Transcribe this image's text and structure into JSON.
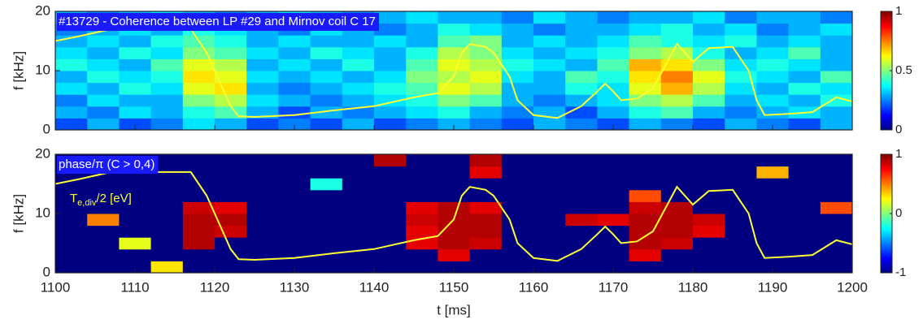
{
  "chart_data": [
    {
      "type": "heatmap",
      "title": "#13729 - Coherence between LP #29 and Mirnov coil C 17",
      "ylabel": "f [kHz]",
      "xlim": [
        1100,
        1200
      ],
      "ylim": [
        0,
        20
      ],
      "yticks": [
        0,
        10,
        20
      ],
      "colormap": "jet",
      "zlim": [
        0,
        1
      ],
      "zticks": [
        0,
        0.5,
        1
      ],
      "xbins": [
        1100,
        1104,
        1108,
        1112,
        1116,
        1120,
        1124,
        1128,
        1132,
        1136,
        1140,
        1144,
        1148,
        1152,
        1156,
        1160,
        1164,
        1168,
        1172,
        1176,
        1180,
        1184,
        1188,
        1192,
        1196,
        1200
      ],
      "ybins": [
        0,
        2,
        4,
        6,
        8,
        10,
        12,
        14,
        16,
        18,
        20
      ],
      "z": [
        [
          0.2,
          0.3,
          0.2,
          0.25,
          0.35,
          0.3,
          0.2,
          0.25,
          0.2,
          0.3,
          0.2,
          0.25,
          0.3,
          0.25,
          0.2,
          0.3,
          0.25,
          0.2,
          0.3,
          0.25,
          0.2,
          0.3,
          0.25,
          0.2,
          0.3
        ],
        [
          0.3,
          0.25,
          0.35,
          0.3,
          0.4,
          0.45,
          0.3,
          0.2,
          0.3,
          0.25,
          0.3,
          0.35,
          0.4,
          0.3,
          0.25,
          0.3,
          0.2,
          0.3,
          0.4,
          0.45,
          0.3,
          0.25,
          0.3,
          0.35,
          0.3
        ],
        [
          0.25,
          0.35,
          0.3,
          0.3,
          0.5,
          0.55,
          0.35,
          0.3,
          0.25,
          0.3,
          0.35,
          0.4,
          0.5,
          0.45,
          0.3,
          0.25,
          0.3,
          0.35,
          0.5,
          0.55,
          0.45,
          0.3,
          0.35,
          0.3,
          0.4
        ],
        [
          0.35,
          0.3,
          0.4,
          0.35,
          0.6,
          0.65,
          0.3,
          0.25,
          0.3,
          0.35,
          0.4,
          0.45,
          0.6,
          0.55,
          0.3,
          0.3,
          0.4,
          0.35,
          0.6,
          0.7,
          0.55,
          0.35,
          0.3,
          0.4,
          0.35
        ],
        [
          0.3,
          0.4,
          0.35,
          0.4,
          0.65,
          0.6,
          0.35,
          0.3,
          0.35,
          0.3,
          0.35,
          0.5,
          0.55,
          0.6,
          0.35,
          0.3,
          0.45,
          0.4,
          0.65,
          0.75,
          0.6,
          0.4,
          0.35,
          0.3,
          0.45
        ],
        [
          0.4,
          0.35,
          0.3,
          0.45,
          0.6,
          0.55,
          0.3,
          0.35,
          0.3,
          0.4,
          0.3,
          0.45,
          0.6,
          0.55,
          0.4,
          0.35,
          0.3,
          0.45,
          0.7,
          0.65,
          0.5,
          0.35,
          0.4,
          0.35,
          0.3
        ],
        [
          0.35,
          0.3,
          0.4,
          0.35,
          0.5,
          0.45,
          0.35,
          0.3,
          0.4,
          0.35,
          0.3,
          0.4,
          0.55,
          0.5,
          0.35,
          0.3,
          0.35,
          0.4,
          0.5,
          0.55,
          0.4,
          0.3,
          0.35,
          0.45,
          0.3
        ],
        [
          0.3,
          0.35,
          0.3,
          0.4,
          0.45,
          0.4,
          0.3,
          0.35,
          0.3,
          0.3,
          0.35,
          0.3,
          0.45,
          0.5,
          0.3,
          0.35,
          0.3,
          0.35,
          0.45,
          0.4,
          0.35,
          0.4,
          0.3,
          0.35,
          0.3
        ],
        [
          0.25,
          0.3,
          0.35,
          0.3,
          0.4,
          0.35,
          0.3,
          0.25,
          0.35,
          0.3,
          0.25,
          0.3,
          0.4,
          0.35,
          0.3,
          0.25,
          0.3,
          0.3,
          0.35,
          0.4,
          0.3,
          0.35,
          0.25,
          0.3,
          0.35
        ],
        [
          0.3,
          0.25,
          0.3,
          0.35,
          0.3,
          0.25,
          0.3,
          0.35,
          0.3,
          0.25,
          0.3,
          0.35,
          0.3,
          0.3,
          0.25,
          0.35,
          0.3,
          0.25,
          0.3,
          0.3,
          0.35,
          0.25,
          0.3,
          0.3,
          0.25
        ]
      ],
      "series": [
        {
          "color": "#ffff33",
          "x": [
            1100,
            1103,
            1107,
            1112,
            1117,
            1119,
            1120,
            1121,
            1122,
            1123,
            1125,
            1130,
            1135,
            1140,
            1145,
            1148,
            1150,
            1151,
            1152,
            1154,
            1155,
            1157,
            1158,
            1160,
            1163,
            1166,
            1168,
            1169,
            1170,
            1171,
            1173,
            1175,
            1177,
            1178,
            1179,
            1180,
            1182,
            1185,
            1187,
            1188,
            1189,
            1192,
            1195,
            1198,
            1200
          ],
          "values": [
            15,
            15.8,
            17,
            17,
            17,
            13,
            10,
            7,
            4,
            2.3,
            2.2,
            2.5,
            3.3,
            4,
            5.5,
            6.2,
            9,
            13,
            14.5,
            14,
            13,
            9,
            5,
            2.5,
            2,
            4,
            6.5,
            7.8,
            6.5,
            5,
            5.3,
            7,
            12,
            14.5,
            13,
            11.5,
            13.8,
            14,
            10,
            5,
            2.5,
            2.7,
            3,
            5.5,
            4.8
          ]
        }
      ]
    },
    {
      "type": "heatmap",
      "title": "phase/π (C > 0,4)",
      "ylabel": "f [kHz]",
      "xlabel": "t [ms]",
      "xlim": [
        1100,
        1200
      ],
      "xticks": [
        1100,
        1110,
        1120,
        1130,
        1140,
        1150,
        1160,
        1170,
        1180,
        1190,
        1200
      ],
      "ylim": [
        0,
        20
      ],
      "yticks": [
        0,
        10,
        20
      ],
      "colormap": "jet",
      "zlim": [
        -1,
        1
      ],
      "zticks": [
        -1,
        0,
        1
      ],
      "xbins": [
        1100,
        1104,
        1108,
        1112,
        1116,
        1120,
        1124,
        1128,
        1132,
        1136,
        1140,
        1144,
        1148,
        1152,
        1156,
        1160,
        1164,
        1168,
        1172,
        1176,
        1180,
        1184,
        1188,
        1192,
        1196,
        1200
      ],
      "ybins": [
        0,
        2,
        4,
        6,
        8,
        10,
        12,
        14,
        16,
        18,
        20
      ],
      "z": [
        [
          -1,
          -1,
          -1,
          0.3,
          -1,
          -1,
          -1,
          -1,
          -1,
          -1,
          -1,
          -1,
          -1,
          -1,
          -1,
          -1,
          -1,
          -1,
          -1,
          -1,
          -1,
          -1,
          -1,
          -1,
          -1
        ],
        [
          -1,
          -1,
          -1,
          -1,
          -1,
          -1,
          -1,
          -1,
          -1,
          -1,
          -1,
          -1,
          0.8,
          -1,
          -1,
          -1,
          -1,
          -1,
          0.8,
          -1,
          -1,
          -1,
          -1,
          -1,
          -1
        ],
        [
          -1,
          -1,
          0.2,
          -1,
          0.9,
          -1,
          -1,
          -1,
          -1,
          -1,
          -1,
          0.8,
          0.9,
          0.85,
          -1,
          -1,
          -1,
          -1,
          0.9,
          0.85,
          -1,
          -1,
          -1,
          -1,
          -1
        ],
        [
          -1,
          -1,
          -1,
          -1,
          0.9,
          0.85,
          -1,
          -1,
          -1,
          -1,
          -1,
          0.8,
          0.9,
          0.9,
          -1,
          -1,
          -1,
          -1,
          0.9,
          0.9,
          0.8,
          -1,
          -1,
          -1,
          -1
        ],
        [
          -1,
          0.5,
          -1,
          -1,
          0.9,
          0.9,
          -1,
          -1,
          -1,
          -1,
          -1,
          0.85,
          0.9,
          0.9,
          -1,
          -1,
          0.85,
          0.8,
          0.9,
          0.9,
          0.85,
          -1,
          -1,
          -1,
          -1
        ],
        [
          -1,
          -1,
          -1,
          -1,
          0.85,
          0.8,
          -1,
          -1,
          -1,
          -1,
          -1,
          0.8,
          0.9,
          0.8,
          -1,
          -1,
          -1,
          -1,
          0.85,
          0.9,
          -1,
          -1,
          -1,
          -1,
          0.6
        ],
        [
          -1,
          -1,
          -1,
          -1,
          -1,
          -1,
          -1,
          -1,
          -1,
          -1,
          -1,
          -1,
          -1,
          -1,
          -1,
          -1,
          -1,
          -1,
          0.6,
          -1,
          -1,
          -1,
          -1,
          -1,
          -1
        ],
        [
          -1,
          -1,
          -1,
          -1,
          -1,
          -1,
          -1,
          -1,
          -0.2,
          -1,
          -1,
          -1,
          -1,
          -1,
          -1,
          -1,
          -1,
          -1,
          -1,
          -1,
          -1,
          -1,
          -1,
          -1,
          -1
        ],
        [
          -1,
          -1,
          -1,
          -1,
          -1,
          -1,
          -1,
          -1,
          -1,
          -1,
          -1,
          -1,
          -1,
          0.8,
          -1,
          -1,
          -1,
          -1,
          -1,
          -1,
          -1,
          -1,
          0.4,
          -1,
          -1
        ],
        [
          -1,
          -1,
          -1,
          -1,
          -1,
          -1,
          -1,
          -1,
          -1,
          -1,
          0.9,
          -1,
          -1,
          0.9,
          -1,
          -1,
          -1,
          -1,
          -1,
          -1,
          -1,
          -1,
          -1,
          -1,
          -1
        ]
      ],
      "series": [
        {
          "name": "T",
          "name_sub": "e,div",
          "name_suffix": "/2 [eV]",
          "color": "#ffff33",
          "x": [
            1100,
            1103,
            1107,
            1112,
            1117,
            1119,
            1120,
            1121,
            1122,
            1123,
            1125,
            1130,
            1135,
            1140,
            1145,
            1148,
            1150,
            1151,
            1152,
            1154,
            1155,
            1157,
            1158,
            1160,
            1163,
            1166,
            1168,
            1169,
            1170,
            1171,
            1173,
            1175,
            1177,
            1178,
            1179,
            1180,
            1182,
            1185,
            1187,
            1188,
            1189,
            1192,
            1195,
            1198,
            1200
          ],
          "values": [
            15,
            15.8,
            17,
            17,
            17,
            13,
            10,
            7,
            4,
            2.3,
            2.2,
            2.5,
            3.3,
            4,
            5.5,
            6.2,
            9,
            13,
            14.5,
            14,
            13,
            9,
            5,
            2.5,
            2,
            4,
            6.5,
            7.8,
            6.5,
            5,
            5.3,
            7,
            12,
            14.5,
            13,
            11.5,
            13.8,
            14,
            10,
            5,
            2.5,
            2.7,
            3,
            5.5,
            4.8
          ]
        }
      ]
    }
  ]
}
